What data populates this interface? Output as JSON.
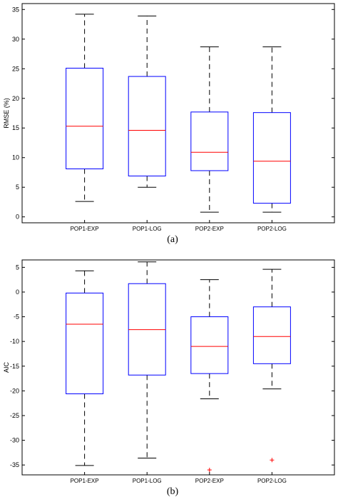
{
  "chart_data": [
    {
      "type": "box",
      "caption": "(a)",
      "ylabel": "RMSE (%)",
      "xlabel": "",
      "ylim": [
        -1,
        36
      ],
      "yticks": [
        0,
        5,
        10,
        15,
        20,
        25,
        30,
        35
      ],
      "categories": [
        "POP1-EXP",
        "POP1-LOG",
        "POP2-EXP",
        "POP2-LOG"
      ],
      "boxes": [
        {
          "min": 2.6,
          "q1": 8.1,
          "median": 15.3,
          "q3": 25.1,
          "max": 34.2,
          "outliers": []
        },
        {
          "min": 5.0,
          "q1": 6.9,
          "median": 14.6,
          "q3": 23.7,
          "max": 33.9,
          "outliers": []
        },
        {
          "min": 0.8,
          "q1": 7.8,
          "median": 10.9,
          "q3": 17.7,
          "max": 28.7,
          "outliers": []
        },
        {
          "min": 0.8,
          "q1": 2.3,
          "median": 9.4,
          "q3": 17.6,
          "max": 28.7,
          "outliers": []
        }
      ]
    },
    {
      "type": "box",
      "caption": "(b)",
      "ylabel": "AIC",
      "xlabel": "",
      "ylim": [
        -37,
        6.5
      ],
      "yticks": [
        -35,
        -30,
        -25,
        -20,
        -15,
        -10,
        -5,
        0,
        5
      ],
      "categories": [
        "POP1-EXP",
        "POP1-LOG",
        "POP2-EXP",
        "POP2-LOG"
      ],
      "boxes": [
        {
          "min": -35.1,
          "q1": -20.6,
          "median": -6.5,
          "q3": -0.2,
          "max": 4.3,
          "outliers": []
        },
        {
          "min": -33.6,
          "q1": -16.8,
          "median": -7.6,
          "q3": 1.7,
          "max": 6.1,
          "outliers": []
        },
        {
          "min": -21.6,
          "q1": -16.5,
          "median": -11.0,
          "q3": -5.0,
          "max": 2.5,
          "outliers": [
            -36.0
          ]
        },
        {
          "min": -19.6,
          "q1": -14.5,
          "median": -9.0,
          "q3": -3.0,
          "max": 4.6,
          "outliers": [
            -34.0
          ]
        }
      ]
    }
  ],
  "colors": {
    "box": "#0000ff",
    "median": "#ff0000",
    "whisker": "#000000",
    "outlier": "#ff0000"
  }
}
